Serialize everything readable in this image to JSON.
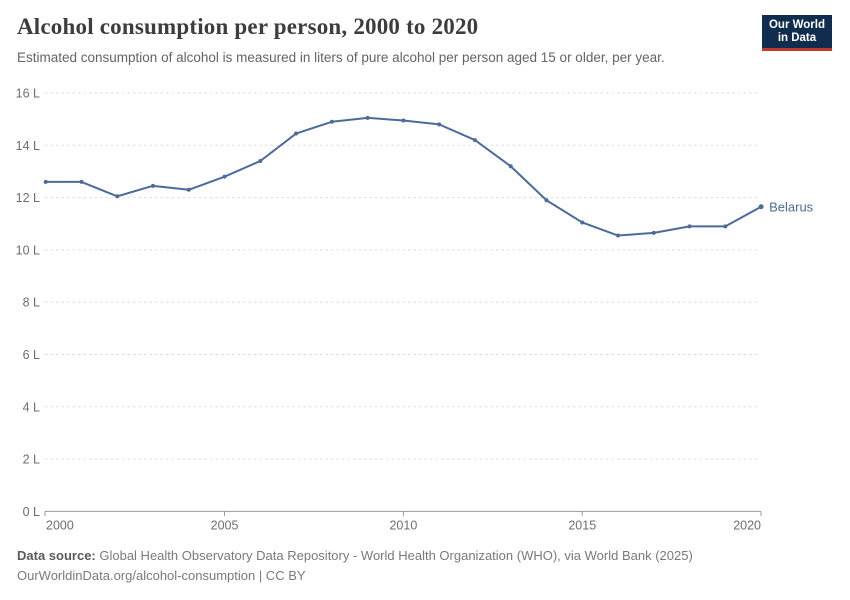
{
  "header": {
    "title": "Alcohol consumption per person, 2000 to 2020",
    "subtitle": "Estimated consumption of alcohol is measured in liters of pure alcohol per person aged 15 or older, per year.",
    "logo": {
      "line1": "Our World",
      "line2": "in Data",
      "bg_color": "#102d50",
      "accent_color": "#c0392b"
    }
  },
  "chart_data": {
    "type": "line",
    "title": "Alcohol consumption per person, 2000 to 2020",
    "xlabel": "",
    "ylabel": "",
    "xlim": [
      2000,
      2020
    ],
    "ylim": [
      0,
      16
    ],
    "x_ticks": [
      2000,
      2005,
      2010,
      2015,
      2020
    ],
    "y_ticks": [
      0,
      2,
      4,
      6,
      8,
      10,
      12,
      14,
      16
    ],
    "y_tick_suffix": " L",
    "grid": "horizontal-dashed",
    "legend_position": "end-of-line-label",
    "series": [
      {
        "name": "Belarus",
        "color": "#4c6a9c",
        "x": [
          2000,
          2001,
          2002,
          2003,
          2004,
          2005,
          2006,
          2007,
          2008,
          2009,
          2010,
          2011,
          2012,
          2013,
          2014,
          2015,
          2016,
          2017,
          2018,
          2019,
          2020
        ],
        "values": [
          12.6,
          12.6,
          12.05,
          12.45,
          12.3,
          12.8,
          13.4,
          14.45,
          14.9,
          15.05,
          14.95,
          14.8,
          14.2,
          13.2,
          11.9,
          11.05,
          10.55,
          10.65,
          10.9,
          10.9,
          11.65
        ]
      }
    ],
    "colors": {
      "gridline": "#dddddd",
      "axis": "#999999",
      "tick_label": "#6e6e6e"
    }
  },
  "footer": {
    "datasource_label": "Data source:",
    "datasource_text": " Global Health Observatory Data Repository - World Health Organization (WHO), via World Bank (2025)",
    "license_line": "OurWorldinData.org/alcohol-consumption | CC BY"
  }
}
